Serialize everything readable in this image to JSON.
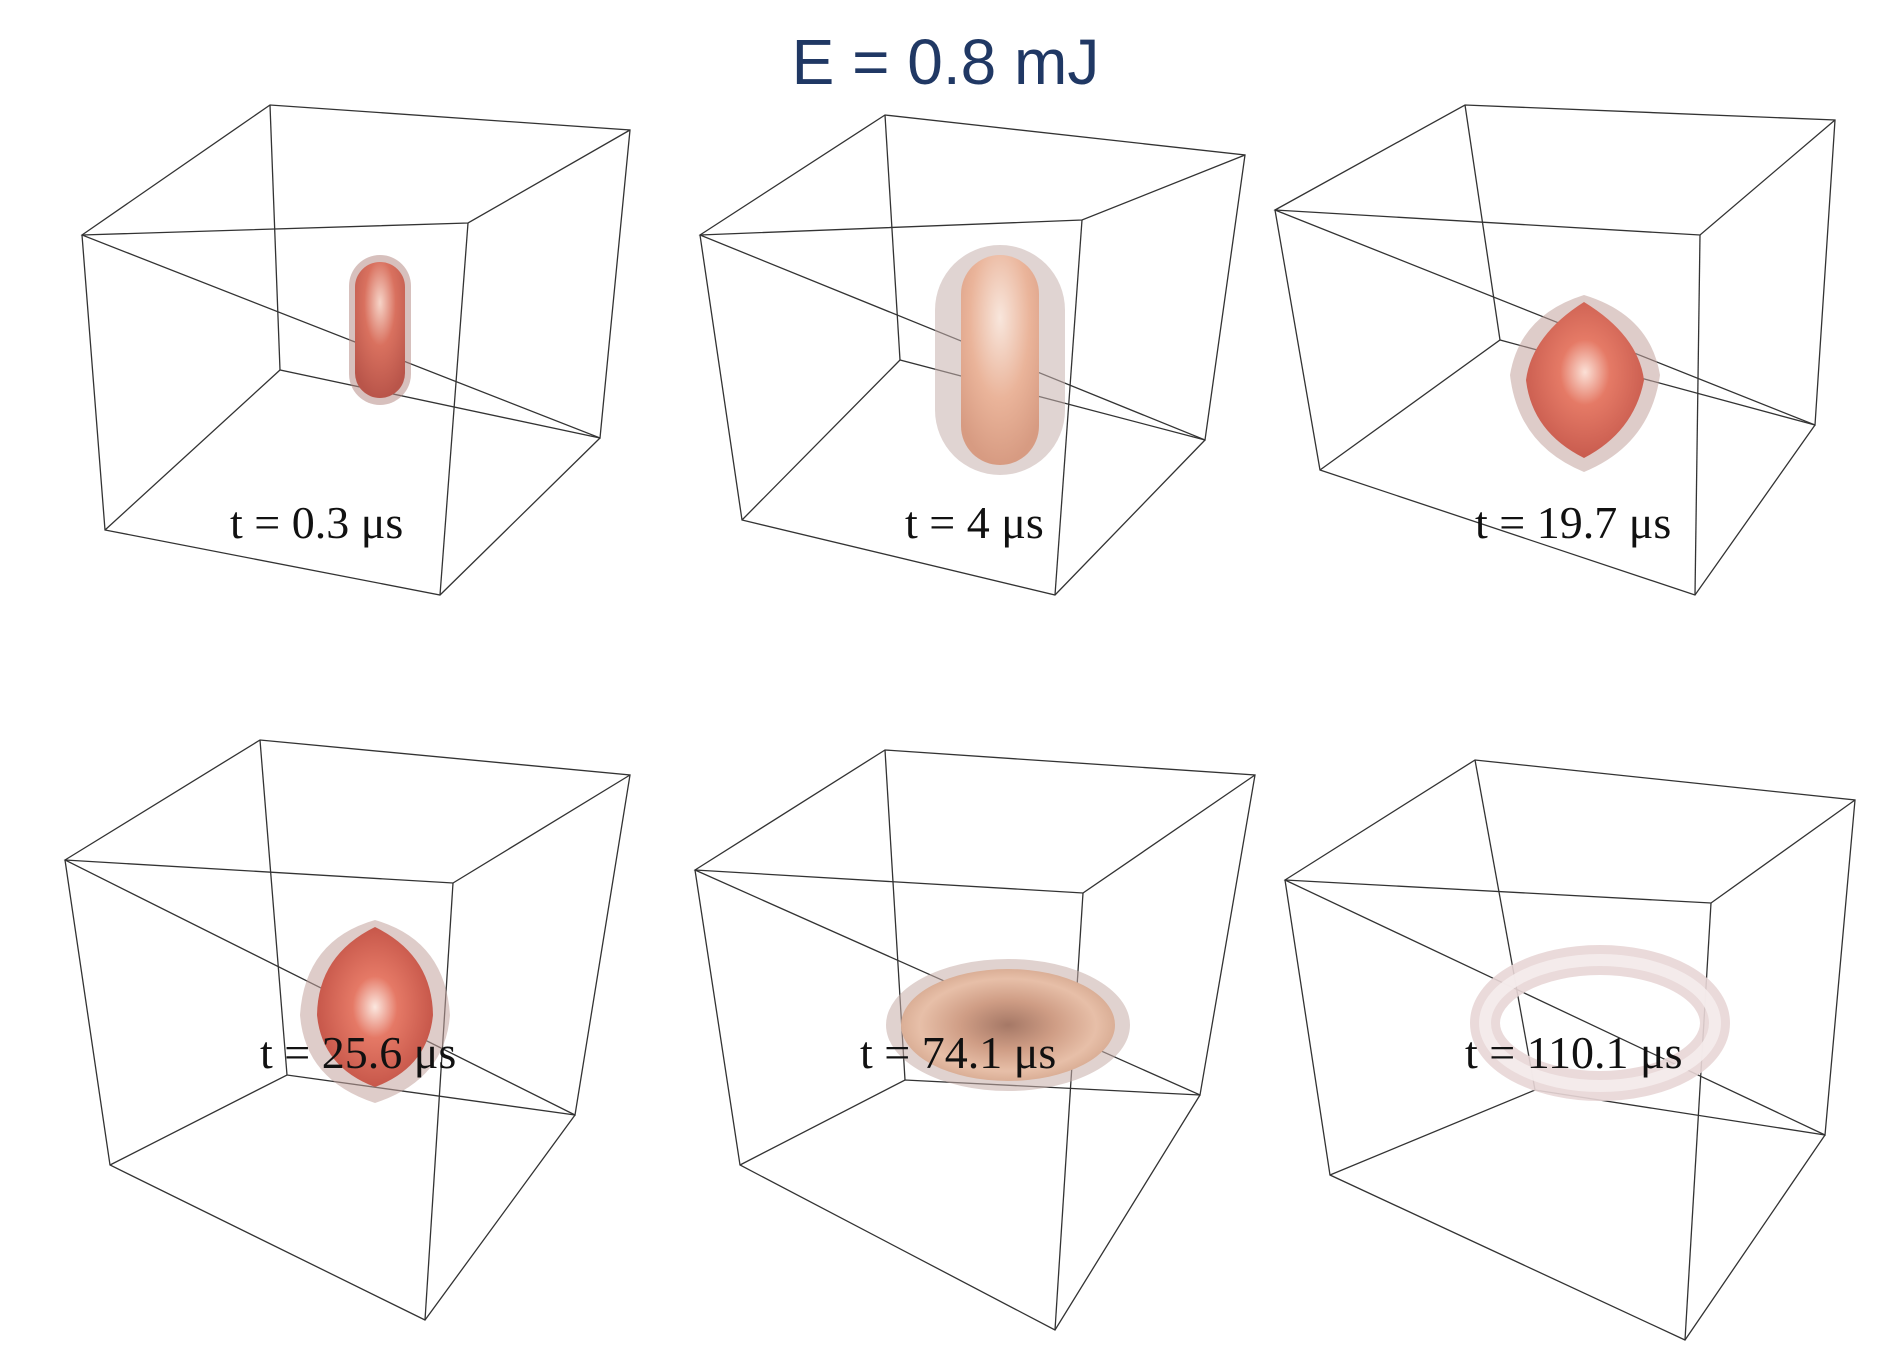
{
  "title": "E = 0.8 mJ",
  "panels": [
    {
      "label": "t = 0.3 μs",
      "shape": "capsule-small"
    },
    {
      "label": "t = 4 μs",
      "shape": "capsule-large"
    },
    {
      "label": "t = 19.7 μs",
      "shape": "diamond"
    },
    {
      "label": "t = 25.6 μs",
      "shape": "sphere-diamond"
    },
    {
      "label": "t = 74.1 μs",
      "shape": "flattened-torus"
    },
    {
      "label": "t = 110.1 μs",
      "shape": "torus-ring"
    }
  ],
  "colors": {
    "title": "#203864",
    "core": "#d9715f",
    "shell": "#c8a7a0",
    "ring": "#e8d6d6"
  }
}
